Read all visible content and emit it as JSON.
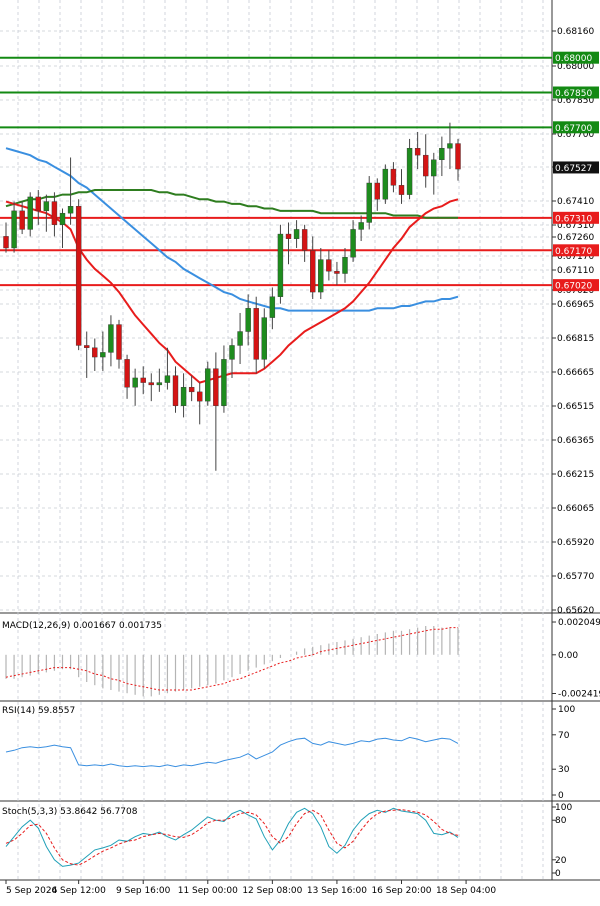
{
  "chart_data": {
    "type": "candlestick",
    "colors": {
      "bull": "#1e8c1e",
      "bear": "#d41414",
      "ema_fast": "#e81c1c",
      "sma_mid": "#2e7d1f",
      "sma_slow": "#3a8fe0",
      "resistance": "#138a13",
      "support": "#e81c1c",
      "grid": "#c8ccd4",
      "macd_hist": "#b4b4b4",
      "macd_signal": "#e81c1c",
      "rsi": "#3a8fe0",
      "stoch_k": "#20a0b8",
      "stoch_d": "#e81c1c"
    },
    "price_ticks": [
      "0.68160",
      "0.68000",
      "0.67850",
      "0.67700",
      "0.67560",
      "0.67410",
      "0.67310",
      "0.67260",
      "0.67170",
      "0.67110",
      "0.67020",
      "0.66965",
      "0.66815",
      "0.66665",
      "0.66515",
      "0.66365",
      "0.66215",
      "0.66065",
      "0.65920",
      "0.65770",
      "0.65620"
    ],
    "price_range": [
      0.6562,
      0.6824
    ],
    "current_price": "0.67527",
    "current_value": 0.67527,
    "resistance_levels": [
      {
        "value": 0.68,
        "label": "0.68000"
      },
      {
        "value": 0.6785,
        "label": "0.67850"
      },
      {
        "value": 0.677,
        "label": "0.67700"
      }
    ],
    "support_levels": [
      {
        "value": 0.6731,
        "label": "0.67310"
      },
      {
        "value": 0.6717,
        "label": "0.67170"
      },
      {
        "value": 0.6702,
        "label": "0.67020"
      }
    ],
    "candles": [
      [
        0.6723,
        0.6729,
        0.6716,
        0.6718
      ],
      [
        0.6718,
        0.6738,
        0.6716,
        0.6734
      ],
      [
        0.6734,
        0.6738,
        0.6724,
        0.6726
      ],
      [
        0.6726,
        0.6742,
        0.6723,
        0.674
      ],
      [
        0.674,
        0.6743,
        0.6728,
        0.6734
      ],
      [
        0.6734,
        0.6741,
        0.6725,
        0.6738
      ],
      [
        0.6738,
        0.6742,
        0.6723,
        0.6728
      ],
      [
        0.6728,
        0.6735,
        0.6718,
        0.6733
      ],
      [
        0.6733,
        0.6757,
        0.6728,
        0.6736
      ],
      [
        0.6736,
        0.6739,
        0.6674,
        0.6676
      ],
      [
        0.6676,
        0.6682,
        0.6662,
        0.6675
      ],
      [
        0.6675,
        0.6679,
        0.6665,
        0.6671
      ],
      [
        0.6671,
        0.6682,
        0.6665,
        0.6673
      ],
      [
        0.6673,
        0.6689,
        0.6667,
        0.6685
      ],
      [
        0.6685,
        0.6687,
        0.6666,
        0.667
      ],
      [
        0.667,
        0.6672,
        0.6653,
        0.6658
      ],
      [
        0.6658,
        0.6666,
        0.665,
        0.6662
      ],
      [
        0.6662,
        0.6667,
        0.6655,
        0.666
      ],
      [
        0.666,
        0.6664,
        0.6652,
        0.6659
      ],
      [
        0.6659,
        0.6666,
        0.6656,
        0.666
      ],
      [
        0.666,
        0.6675,
        0.6657,
        0.6663
      ],
      [
        0.6663,
        0.6667,
        0.6647,
        0.665
      ],
      [
        0.665,
        0.6664,
        0.6645,
        0.6658
      ],
      [
        0.6658,
        0.6663,
        0.6652,
        0.6656
      ],
      [
        0.6656,
        0.666,
        0.6642,
        0.6652
      ],
      [
        0.6652,
        0.6669,
        0.665,
        0.6666
      ],
      [
        0.6666,
        0.6673,
        0.6622,
        0.665
      ],
      [
        0.665,
        0.6676,
        0.6647,
        0.667
      ],
      [
        0.667,
        0.6679,
        0.6662,
        0.6676
      ],
      [
        0.6676,
        0.669,
        0.6668,
        0.6682
      ],
      [
        0.6682,
        0.6698,
        0.6676,
        0.6692
      ],
      [
        0.6692,
        0.6697,
        0.6664,
        0.667
      ],
      [
        0.667,
        0.6692,
        0.6666,
        0.6688
      ],
      [
        0.6688,
        0.6701,
        0.6683,
        0.6697
      ],
      [
        0.6697,
        0.6728,
        0.6694,
        0.6724
      ],
      [
        0.6724,
        0.6729,
        0.6711,
        0.6722
      ],
      [
        0.6722,
        0.673,
        0.6718,
        0.6726
      ],
      [
        0.6726,
        0.6728,
        0.6712,
        0.6717
      ],
      [
        0.6717,
        0.6723,
        0.6696,
        0.6699
      ],
      [
        0.6699,
        0.6718,
        0.6696,
        0.6713
      ],
      [
        0.6713,
        0.6717,
        0.6704,
        0.6708
      ],
      [
        0.6708,
        0.6712,
        0.6702,
        0.6707
      ],
      [
        0.6707,
        0.6718,
        0.6703,
        0.6714
      ],
      [
        0.6714,
        0.673,
        0.6712,
        0.6726
      ],
      [
        0.6726,
        0.6732,
        0.6721,
        0.6729
      ],
      [
        0.6729,
        0.6749,
        0.6726,
        0.6746
      ],
      [
        0.6746,
        0.6748,
        0.6734,
        0.6739
      ],
      [
        0.6739,
        0.6754,
        0.6737,
        0.6752
      ],
      [
        0.6752,
        0.6755,
        0.6742,
        0.6745
      ],
      [
        0.6745,
        0.6752,
        0.6737,
        0.6741
      ],
      [
        0.6741,
        0.6765,
        0.6739,
        0.6761
      ],
      [
        0.6761,
        0.6768,
        0.6752,
        0.6758
      ],
      [
        0.6758,
        0.6767,
        0.6744,
        0.6749
      ],
      [
        0.6749,
        0.6759,
        0.6741,
        0.6756
      ],
      [
        0.6756,
        0.6766,
        0.6749,
        0.6761
      ],
      [
        0.6761,
        0.6772,
        0.6752,
        0.6763
      ],
      [
        0.6763,
        0.6765,
        0.6747,
        0.6752
      ]
    ],
    "ema_fast": [
      0.6738,
      0.6737,
      0.6736,
      0.6735,
      0.6734,
      0.6733,
      0.6731,
      0.6729,
      0.6726,
      0.6718,
      0.6713,
      0.6709,
      0.6706,
      0.6703,
      0.6699,
      0.6694,
      0.6689,
      0.6685,
      0.6681,
      0.6677,
      0.6674,
      0.6669,
      0.6666,
      0.6663,
      0.666,
      0.6661,
      0.6662,
      0.6663,
      0.6664,
      0.6664,
      0.6664,
      0.6664,
      0.6666,
      0.6669,
      0.6672,
      0.6676,
      0.6679,
      0.6682,
      0.6684,
      0.6686,
      0.6688,
      0.669,
      0.6692,
      0.6695,
      0.6699,
      0.6703,
      0.6708,
      0.6713,
      0.6718,
      0.6722,
      0.6727,
      0.673,
      0.6733,
      0.6735,
      0.6736,
      0.6738,
      0.6739
    ],
    "sma_mid": [
      0.6736,
      0.6737,
      0.6738,
      0.6739,
      0.6739,
      0.674,
      0.674,
      0.6741,
      0.6741,
      0.6742,
      0.6742,
      0.6743,
      0.6743,
      0.6743,
      0.6743,
      0.6743,
      0.6743,
      0.6743,
      0.6743,
      0.6742,
      0.6742,
      0.6741,
      0.6741,
      0.674,
      0.6739,
      0.6739,
      0.6738,
      0.6738,
      0.6737,
      0.6737,
      0.6736,
      0.6736,
      0.6735,
      0.6735,
      0.6734,
      0.6734,
      0.6734,
      0.6734,
      0.6734,
      0.6733,
      0.6733,
      0.6733,
      0.6733,
      0.6733,
      0.6733,
      0.6733,
      0.6733,
      0.6733,
      0.6732,
      0.6732,
      0.6732,
      0.6732,
      0.6731,
      0.6731,
      0.6731,
      0.6731,
      0.6731
    ],
    "sma_slow": [
      0.6761,
      0.676,
      0.6759,
      0.6758,
      0.6756,
      0.6755,
      0.6753,
      0.6751,
      0.6749,
      0.6746,
      0.6744,
      0.6741,
      0.6738,
      0.6735,
      0.6732,
      0.6729,
      0.6726,
      0.6723,
      0.672,
      0.6717,
      0.6714,
      0.6712,
      0.6709,
      0.6707,
      0.6705,
      0.6703,
      0.6701,
      0.6699,
      0.6698,
      0.6696,
      0.6695,
      0.6694,
      0.6693,
      0.6692,
      0.6692,
      0.6691,
      0.6691,
      0.6691,
      0.6691,
      0.6691,
      0.6691,
      0.6691,
      0.6691,
      0.6691,
      0.6691,
      0.6691,
      0.6692,
      0.6692,
      0.6692,
      0.6693,
      0.6693,
      0.6694,
      0.6695,
      0.6695,
      0.6696,
      0.6696,
      0.6697
    ],
    "time_labels": [
      "5 Sep 2024",
      "6 Sep 12:00",
      "9 Sep 16:00",
      "11 Sep 00:00",
      "12 Sep 08:00",
      "13 Sep 16:00",
      "16 Sep 20:00",
      "18 Sep 04:00"
    ],
    "time_label_index": [
      0,
      9,
      17,
      25,
      33,
      41,
      49,
      57
    ],
    "macd": {
      "label": "MACD(12,26,9) 0.001667 0.001735",
      "ticks": [
        "0.002049",
        "0.00",
        "-0.002419"
      ],
      "range": [
        -0.0027,
        0.0023
      ],
      "hist": [
        -0.0015,
        -0.0015,
        -0.0014,
        -0.0013,
        -0.0012,
        -0.0011,
        -0.001,
        -0.0009,
        -0.0009,
        -0.0014,
        -0.0017,
        -0.0019,
        -0.0021,
        -0.0022,
        -0.0023,
        -0.0024,
        -0.0025,
        -0.0026,
        -0.0026,
        -0.0025,
        -0.0024,
        -0.0023,
        -0.0022,
        -0.0021,
        -0.002,
        -0.0019,
        -0.0018,
        -0.0016,
        -0.0014,
        -0.0012,
        -0.001,
        -0.0008,
        -0.0006,
        -0.0004,
        -0.0002,
        0.0,
        0.0002,
        0.0004,
        0.0005,
        0.0006,
        0.0007,
        0.0008,
        0.0009,
        0.001,
        0.0011,
        0.0012,
        0.0013,
        0.0014,
        0.0015,
        0.0015,
        0.0016,
        0.0017,
        0.0018,
        0.0018,
        0.0017,
        0.0017,
        0.0017
      ],
      "signal": [
        -0.0014,
        -0.0013,
        -0.0012,
        -0.0011,
        -0.001,
        -0.0009,
        -0.0008,
        -0.0008,
        -0.0008,
        -0.0009,
        -0.001,
        -0.0012,
        -0.0013,
        -0.0015,
        -0.0016,
        -0.0018,
        -0.0019,
        -0.002,
        -0.0021,
        -0.0022,
        -0.0022,
        -0.0022,
        -0.0022,
        -0.0022,
        -0.0021,
        -0.002,
        -0.0019,
        -0.0018,
        -0.0016,
        -0.0015,
        -0.0013,
        -0.0011,
        -0.0009,
        -0.0007,
        -0.0005,
        -0.0004,
        -0.0002,
        -0.0001,
        0.0,
        0.0002,
        0.0003,
        0.0004,
        0.0005,
        0.0006,
        0.0007,
        0.0008,
        0.0009,
        0.001,
        0.0011,
        0.0012,
        0.0013,
        0.0014,
        0.0015,
        0.0016,
        0.0016,
        0.0017,
        0.0017
      ]
    },
    "rsi": {
      "label": "RSI(14) 59.8557",
      "ticks": [
        100,
        70,
        30,
        0
      ],
      "values": [
        50,
        52,
        55,
        56,
        55,
        56,
        58,
        56,
        55,
        35,
        34,
        35,
        34,
        36,
        34,
        33,
        34,
        33,
        34,
        33,
        35,
        33,
        35,
        34,
        36,
        38,
        37,
        40,
        42,
        44,
        48,
        42,
        46,
        50,
        58,
        62,
        65,
        66,
        60,
        58,
        62,
        60,
        58,
        60,
        63,
        62,
        65,
        66,
        64,
        63,
        67,
        65,
        62,
        64,
        66,
        65,
        60
      ]
    },
    "stoch": {
      "label": "Stoch(5,3,3) 53.8642 56.7708",
      "ticks": [
        100,
        80,
        20,
        0
      ],
      "k": [
        40,
        55,
        70,
        80,
        68,
        40,
        20,
        10,
        12,
        15,
        25,
        35,
        38,
        42,
        50,
        48,
        55,
        60,
        58,
        62,
        55,
        50,
        58,
        65,
        75,
        85,
        80,
        78,
        90,
        95,
        88,
        82,
        55,
        35,
        50,
        75,
        92,
        98,
        90,
        70,
        40,
        30,
        42,
        65,
        80,
        90,
        95,
        92,
        98,
        94,
        92,
        90,
        80,
        60,
        58,
        62,
        54
      ],
      "d": [
        45,
        50,
        60,
        72,
        74,
        60,
        38,
        20,
        14,
        12,
        18,
        26,
        33,
        38,
        44,
        48,
        50,
        55,
        58,
        60,
        58,
        55,
        54,
        58,
        66,
        76,
        80,
        80,
        84,
        90,
        92,
        88,
        75,
        55,
        45,
        55,
        75,
        90,
        95,
        88,
        65,
        45,
        38,
        48,
        65,
        80,
        90,
        94,
        95,
        96,
        94,
        92,
        88,
        78,
        66,
        60,
        57
      ]
    }
  }
}
